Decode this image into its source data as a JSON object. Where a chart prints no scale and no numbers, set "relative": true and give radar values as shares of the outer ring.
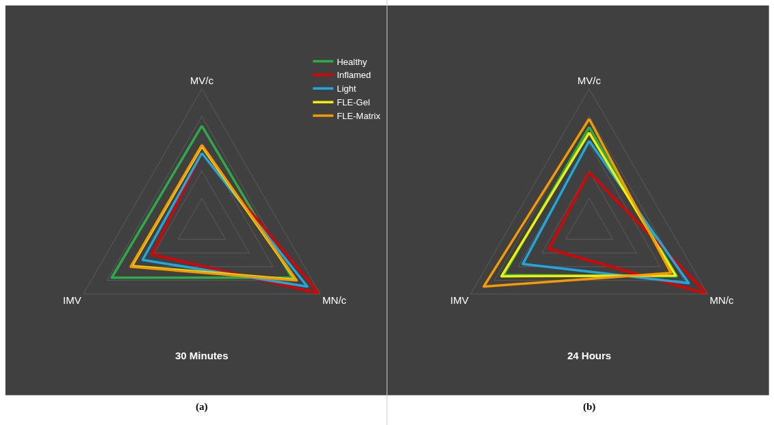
{
  "chart_data": [
    {
      "type": "radar",
      "title": "30 Minutes",
      "categories": [
        "MV/c",
        "MN/c",
        "IMV"
      ],
      "relative": true,
      "grid": true,
      "legend": "top right",
      "annotations": [
        "(a)"
      ],
      "series": [
        {
          "name": "Healthy",
          "color": "#2eaa48",
          "values": [
            0.73,
            0.76,
            0.76
          ]
        },
        {
          "name": "Inflamed",
          "color": "#e00000",
          "values": [
            0.53,
            0.99,
            0.42
          ]
        },
        {
          "name": "Light",
          "color": "#1ea8e0",
          "values": [
            0.53,
            0.89,
            0.5
          ]
        },
        {
          "name": "FLE-Gel",
          "color": "#f0f000",
          "values": [
            0.58,
            0.79,
            0.59
          ]
        },
        {
          "name": "FLE-Matrix",
          "color": "#f59a00",
          "values": [
            0.59,
            0.8,
            0.6
          ]
        }
      ]
    },
    {
      "type": "radar",
      "title": "24 Hours",
      "categories": [
        "MV/c",
        "MN/c",
        "IMV"
      ],
      "relative": true,
      "grid": true,
      "annotations": [
        "(b)"
      ],
      "series": [
        {
          "color": "#2eaa48",
          "values": [
            0.72,
            0.74,
            0.72
          ]
        },
        {
          "color": "#e00000",
          "values": [
            0.39,
            1,
            0.34
          ]
        },
        {
          "color": "#1ea8e0",
          "values": [
            0.62,
            0.84,
            0.56
          ]
        },
        {
          "color": "#f0f000",
          "values": [
            0.68,
            0.73,
            0.74
          ]
        },
        {
          "color": "#f59a00",
          "values": [
            0.78,
            0.69,
            0.89
          ]
        }
      ]
    }
  ]
}
